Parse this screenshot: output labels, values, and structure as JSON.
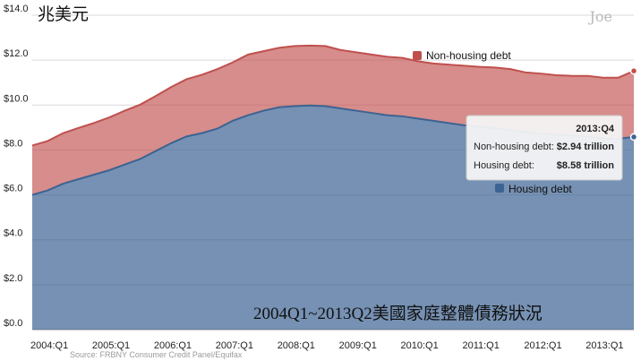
{
  "chart_data": {
    "type": "area",
    "stacked": true,
    "title": "兆美元",
    "caption": "2004Q1~2013Q2美國家庭整體債務狀況",
    "watermark": "Joe",
    "source": "Source: FRBNY Consumer Credit Panel/Equifax",
    "ylim": [
      0,
      14
    ],
    "y_ticks": [
      "$0.0",
      "$2.0",
      "$4.0",
      "$6.0",
      "$8.0",
      "$10.0",
      "$12.0",
      "$14.0"
    ],
    "x_ticks": [
      "2004:Q1",
      "2005:Q1",
      "2006:Q1",
      "2007:Q1",
      "2008:Q1",
      "2009:Q1",
      "2010:Q1",
      "2011:Q1",
      "2012:Q1",
      "2013:Q1"
    ],
    "grid": true,
    "x": [
      "2004:Q1",
      "2004:Q2",
      "2004:Q3",
      "2004:Q4",
      "2005:Q1",
      "2005:Q2",
      "2005:Q3",
      "2005:Q4",
      "2006:Q1",
      "2006:Q2",
      "2006:Q3",
      "2006:Q4",
      "2007:Q1",
      "2007:Q2",
      "2007:Q3",
      "2007:Q4",
      "2008:Q1",
      "2008:Q2",
      "2008:Q3",
      "2008:Q4",
      "2009:Q1",
      "2009:Q2",
      "2009:Q3",
      "2009:Q4",
      "2010:Q1",
      "2010:Q2",
      "2010:Q3",
      "2010:Q4",
      "2011:Q1",
      "2011:Q2",
      "2011:Q3",
      "2011:Q4",
      "2012:Q1",
      "2012:Q2",
      "2012:Q3",
      "2012:Q4",
      "2013:Q1",
      "2013:Q2",
      "2013:Q3",
      "2013:Q4"
    ],
    "series": [
      {
        "name": "Housing debt",
        "color": "#3c6393",
        "values": [
          6.0,
          6.2,
          6.5,
          6.7,
          6.9,
          7.1,
          7.35,
          7.6,
          7.95,
          8.3,
          8.6,
          8.75,
          8.95,
          9.3,
          9.55,
          9.75,
          9.9,
          9.95,
          9.98,
          9.95,
          9.85,
          9.75,
          9.65,
          9.55,
          9.5,
          9.4,
          9.3,
          9.2,
          9.1,
          9.05,
          8.97,
          8.9,
          8.8,
          8.73,
          8.68,
          8.65,
          8.6,
          8.5,
          8.5,
          8.58
        ]
      },
      {
        "name": "Non-housing debt",
        "color": "#c0504d",
        "values": [
          2.2,
          2.2,
          2.25,
          2.28,
          2.3,
          2.35,
          2.4,
          2.42,
          2.45,
          2.5,
          2.55,
          2.6,
          2.65,
          2.6,
          2.7,
          2.65,
          2.65,
          2.68,
          2.67,
          2.68,
          2.6,
          2.6,
          2.6,
          2.6,
          2.6,
          2.55,
          2.55,
          2.6,
          2.65,
          2.65,
          2.7,
          2.7,
          2.65,
          2.67,
          2.65,
          2.65,
          2.7,
          2.72,
          2.72,
          2.94
        ]
      }
    ],
    "legend": [
      {
        "label": "Non-housing debt",
        "color": "#c0504d"
      },
      {
        "label": "Housing debt",
        "color": "#3c6393"
      }
    ],
    "tooltip": {
      "period": "2013:Q4",
      "rows": [
        {
          "label": "Non-housing debt:",
          "value": "$2.94 trillion"
        },
        {
          "label": "Housing debt:",
          "value": "$8.58 trillion"
        }
      ]
    }
  }
}
